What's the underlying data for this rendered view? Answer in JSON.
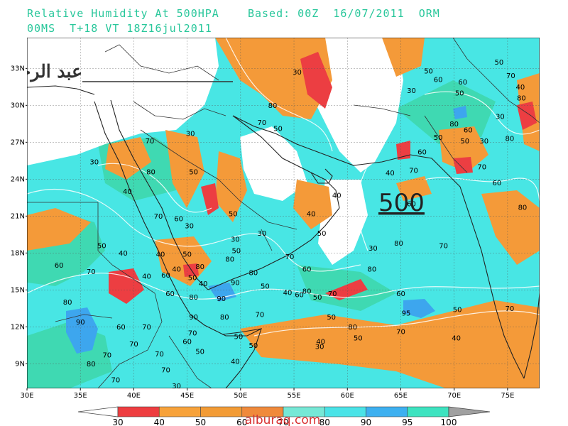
{
  "title": {
    "line1": "Relative Humidity At 500HPA    Based: 00Z  16/07/2011  ORM",
    "line2": "00MS  T+18 VT 18Z16jul2011"
  },
  "lat_ticks": [
    "33N",
    "30N",
    "27N",
    "24N",
    "21N",
    "18N",
    "15N",
    "12N",
    "9N"
  ],
  "lon_ticks": [
    "30E",
    "35E",
    "40E",
    "45E",
    "50E",
    "55E",
    "60E",
    "65E",
    "70E",
    "75E"
  ],
  "map": {
    "lon_range": [
      30,
      78
    ],
    "lat_range": [
      7,
      35.5
    ],
    "background_color": "#44e6e0",
    "contour_labels": [
      {
        "text": "30",
        "lon": 55.3,
        "lat": 32.5
      },
      {
        "text": "50",
        "lon": 74.2,
        "lat": 33.3
      },
      {
        "text": "50",
        "lon": 67.6,
        "lat": 32.6
      },
      {
        "text": "60",
        "lon": 68.5,
        "lat": 31.9
      },
      {
        "text": "70",
        "lon": 75.3,
        "lat": 32.2
      },
      {
        "text": "40",
        "lon": 76.2,
        "lat": 31.3
      },
      {
        "text": "60",
        "lon": 70.8,
        "lat": 31.7
      },
      {
        "text": "30",
        "lon": 66.0,
        "lat": 31.0
      },
      {
        "text": "50",
        "lon": 70.5,
        "lat": 30.8
      },
      {
        "text": "80",
        "lon": 76.3,
        "lat": 30.4
      },
      {
        "text": "80",
        "lon": 53.0,
        "lat": 29.8
      },
      {
        "text": "70",
        "lon": 52.0,
        "lat": 28.4
      },
      {
        "text": "30",
        "lon": 74.3,
        "lat": 28.9
      },
      {
        "text": "80",
        "lon": 70.0,
        "lat": 28.3
      },
      {
        "text": "50",
        "lon": 53.5,
        "lat": 27.9
      },
      {
        "text": "60",
        "lon": 71.3,
        "lat": 27.8
      },
      {
        "text": "30",
        "lon": 45.3,
        "lat": 27.5
      },
      {
        "text": "50",
        "lon": 68.5,
        "lat": 27.2
      },
      {
        "text": "80",
        "lon": 75.2,
        "lat": 27.1
      },
      {
        "text": "70",
        "lon": 41.5,
        "lat": 26.9
      },
      {
        "text": "50",
        "lon": 71.0,
        "lat": 26.9
      },
      {
        "text": "30",
        "lon": 72.8,
        "lat": 26.9
      },
      {
        "text": "60",
        "lon": 67.0,
        "lat": 26.0
      },
      {
        "text": "30",
        "lon": 36.3,
        "lat": 25.2
      },
      {
        "text": "80",
        "lon": 41.6,
        "lat": 24.4
      },
      {
        "text": "50",
        "lon": 45.6,
        "lat": 24.4
      },
      {
        "text": "70",
        "lon": 72.6,
        "lat": 24.8
      },
      {
        "text": "70",
        "lon": 66.2,
        "lat": 24.5
      },
      {
        "text": "40",
        "lon": 64.0,
        "lat": 24.3
      },
      {
        "text": "60",
        "lon": 74.0,
        "lat": 23.5
      },
      {
        "text": "40",
        "lon": 39.4,
        "lat": 22.8
      },
      {
        "text": "40",
        "lon": 59.0,
        "lat": 22.5
      },
      {
        "text": "60",
        "lon": 66.0,
        "lat": 21.8
      },
      {
        "text": "80",
        "lon": 76.4,
        "lat": 21.5
      },
      {
        "text": "50",
        "lon": 49.3,
        "lat": 21.0
      },
      {
        "text": "40",
        "lon": 56.6,
        "lat": 21.0
      },
      {
        "text": "70",
        "lon": 42.3,
        "lat": 20.8
      },
      {
        "text": "60",
        "lon": 44.2,
        "lat": 20.6
      },
      {
        "text": "30",
        "lon": 45.2,
        "lat": 20.0
      },
      {
        "text": "50",
        "lon": 57.6,
        "lat": 19.4
      },
      {
        "text": "30",
        "lon": 52.0,
        "lat": 19.4
      },
      {
        "text": "30",
        "lon": 49.5,
        "lat": 18.9
      },
      {
        "text": "50",
        "lon": 49.6,
        "lat": 18.0
      },
      {
        "text": "50",
        "lon": 37.0,
        "lat": 18.4
      },
      {
        "text": "40",
        "lon": 39.0,
        "lat": 17.8
      },
      {
        "text": "80",
        "lon": 64.8,
        "lat": 18.6
      },
      {
        "text": "70",
        "lon": 69.0,
        "lat": 18.4
      },
      {
        "text": "30",
        "lon": 62.4,
        "lat": 18.2
      },
      {
        "text": "40",
        "lon": 42.5,
        "lat": 17.7
      },
      {
        "text": "50",
        "lon": 45.0,
        "lat": 17.7
      },
      {
        "text": "80",
        "lon": 49.0,
        "lat": 17.3
      },
      {
        "text": "70",
        "lon": 54.6,
        "lat": 17.5
      },
      {
        "text": "80",
        "lon": 46.2,
        "lat": 16.7
      },
      {
        "text": "40",
        "lon": 44.0,
        "lat": 16.5
      },
      {
        "text": "60",
        "lon": 43.0,
        "lat": 16.0
      },
      {
        "text": "40",
        "lon": 41.2,
        "lat": 15.9
      },
      {
        "text": "80",
        "lon": 51.2,
        "lat": 16.2
      },
      {
        "text": "60",
        "lon": 56.2,
        "lat": 16.5
      },
      {
        "text": "80",
        "lon": 62.3,
        "lat": 16.5
      },
      {
        "text": "60",
        "lon": 33.0,
        "lat": 16.8
      },
      {
        "text": "70",
        "lon": 36.0,
        "lat": 16.3
      },
      {
        "text": "50",
        "lon": 45.5,
        "lat": 15.8
      },
      {
        "text": "40",
        "lon": 46.5,
        "lat": 15.3
      },
      {
        "text": "50",
        "lon": 52.3,
        "lat": 15.1
      },
      {
        "text": "90",
        "lon": 49.5,
        "lat": 15.4
      },
      {
        "text": "40",
        "lon": 54.4,
        "lat": 14.6
      },
      {
        "text": "60",
        "lon": 55.5,
        "lat": 14.4
      },
      {
        "text": "80",
        "lon": 56.2,
        "lat": 14.7
      },
      {
        "text": "50",
        "lon": 57.2,
        "lat": 14.2
      },
      {
        "text": "70",
        "lon": 58.6,
        "lat": 14.5
      },
      {
        "text": "60",
        "lon": 65.0,
        "lat": 14.5
      },
      {
        "text": "60",
        "lon": 43.4,
        "lat": 14.5
      },
      {
        "text": "80",
        "lon": 45.6,
        "lat": 14.2
      },
      {
        "text": "90",
        "lon": 48.2,
        "lat": 14.1
      },
      {
        "text": "80",
        "lon": 33.8,
        "lat": 13.8
      },
      {
        "text": "50",
        "lon": 70.3,
        "lat": 13.2
      },
      {
        "text": "70",
        "lon": 75.2,
        "lat": 13.3
      },
      {
        "text": "95",
        "lon": 65.5,
        "lat": 12.9
      },
      {
        "text": "70",
        "lon": 51.8,
        "lat": 12.8
      },
      {
        "text": "50",
        "lon": 58.5,
        "lat": 12.6
      },
      {
        "text": "80",
        "lon": 48.5,
        "lat": 12.6
      },
      {
        "text": "90",
        "lon": 35.0,
        "lat": 12.2
      },
      {
        "text": "90",
        "lon": 45.6,
        "lat": 12.6
      },
      {
        "text": "60",
        "lon": 38.8,
        "lat": 11.8
      },
      {
        "text": "70",
        "lon": 41.2,
        "lat": 11.8
      },
      {
        "text": "80",
        "lon": 60.5,
        "lat": 11.8
      },
      {
        "text": "70",
        "lon": 45.5,
        "lat": 11.3
      },
      {
        "text": "50",
        "lon": 49.8,
        "lat": 11.0
      },
      {
        "text": "70",
        "lon": 65.0,
        "lat": 11.4
      },
      {
        "text": "50",
        "lon": 61.0,
        "lat": 10.9
      },
      {
        "text": "40",
        "lon": 70.2,
        "lat": 10.9
      },
      {
        "text": "60",
        "lon": 45.0,
        "lat": 10.6
      },
      {
        "text": "40",
        "lon": 57.5,
        "lat": 10.6
      },
      {
        "text": "30",
        "lon": 57.4,
        "lat": 10.2
      },
      {
        "text": "70",
        "lon": 40.0,
        "lat": 10.4
      },
      {
        "text": "50",
        "lon": 51.2,
        "lat": 10.3
      },
      {
        "text": "70",
        "lon": 42.4,
        "lat": 9.6
      },
      {
        "text": "50",
        "lon": 46.2,
        "lat": 9.8
      },
      {
        "text": "80",
        "lon": 36.0,
        "lat": 8.8
      },
      {
        "text": "70",
        "lon": 37.5,
        "lat": 9.5
      },
      {
        "text": "40",
        "lon": 49.5,
        "lat": 9.0
      },
      {
        "text": "70",
        "lon": 38.3,
        "lat": 7.5
      },
      {
        "text": "30",
        "lon": 44.0,
        "lat": 7.0
      },
      {
        "text": "70",
        "lon": 43.0,
        "lat": 8.3
      }
    ]
  },
  "signature": "عبد الرحمن الجهني",
  "big_label": "500",
  "watermark": "alburaq.com",
  "colorbar": {
    "labels": [
      "30",
      "40",
      "50",
      "60",
      "70",
      "80",
      "90",
      "95",
      "100"
    ],
    "colors": [
      "#ee3d40",
      "#f7a23a",
      "#f29b35",
      "#f08a3b",
      "#76e8d6",
      "#4ae3e7",
      "#3db0f0",
      "#3de3c0"
    ],
    "low_color": "#ffffff",
    "high_color": "#a0a0a0"
  }
}
